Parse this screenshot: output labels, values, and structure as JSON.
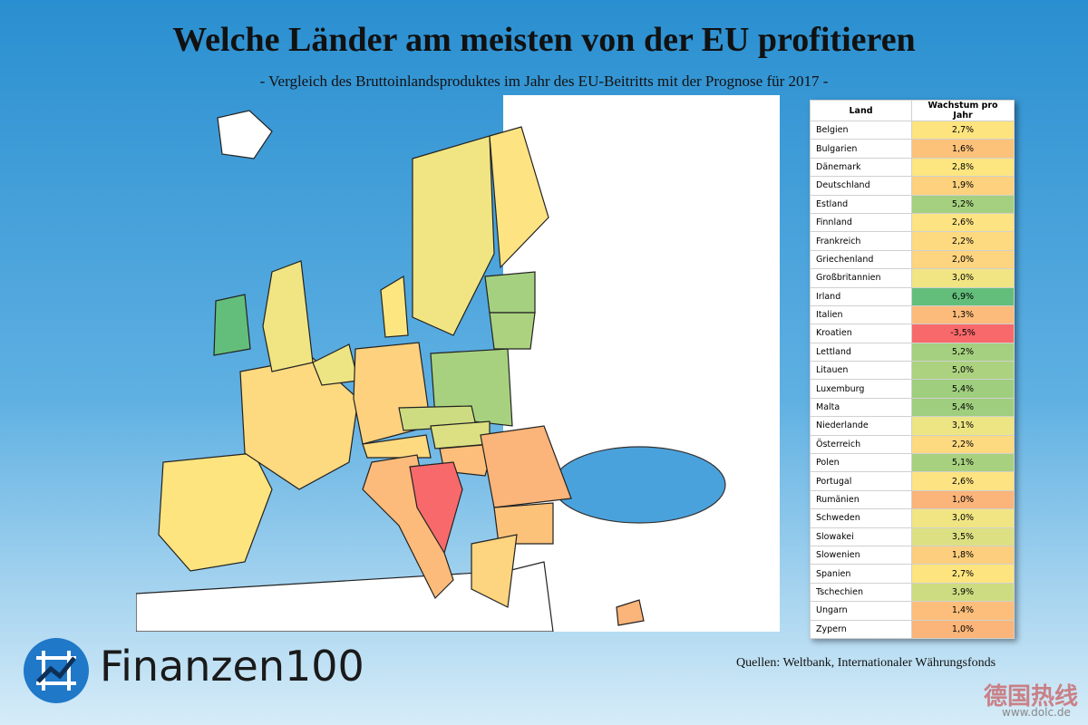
{
  "header": {
    "title": "Welche Länder am meisten von der EU profitieren",
    "subtitle": "- Vergleich des Bruttoinlandsproduktes im Jahr des EU-Beitritts mit der Prognose für 2017 -"
  },
  "table": {
    "columns": [
      "Land",
      "Wachstum pro Jahr"
    ],
    "rows": [
      [
        "Belgien",
        "2,7%"
      ],
      [
        "Bulgarien",
        "1,6%"
      ],
      [
        "Dänemark",
        "2,8%"
      ],
      [
        "Deutschland",
        "1,9%"
      ],
      [
        "Estland",
        "5,2%"
      ],
      [
        "Finnland",
        "2,6%"
      ],
      [
        "Frankreich",
        "2,2%"
      ],
      [
        "Griechenland",
        "2,0%"
      ],
      [
        "Großbritannien",
        "3,0%"
      ],
      [
        "Irland",
        "6,9%"
      ],
      [
        "Italien",
        "1,3%"
      ],
      [
        "Kroatien",
        "-3,5%"
      ],
      [
        "Lettland",
        "5,2%"
      ],
      [
        "Litauen",
        "5,0%"
      ],
      [
        "Luxemburg",
        "5,4%"
      ],
      [
        "Malta",
        "5,4%"
      ],
      [
        "Niederlande",
        "3,1%"
      ],
      [
        "Österreich",
        "2,2%"
      ],
      [
        "Polen",
        "5,1%"
      ],
      [
        "Portugal",
        "2,6%"
      ],
      [
        "Rumänien",
        "1,0%"
      ],
      [
        "Schweden",
        "3,0%"
      ],
      [
        "Slowakei",
        "3,5%"
      ],
      [
        "Slowenien",
        "1,8%"
      ],
      [
        "Spanien",
        "2,7%"
      ],
      [
        "Tschechien",
        "3,9%"
      ],
      [
        "Ungarn",
        "1,4%"
      ],
      [
        "Zypern",
        "1,0%"
      ]
    ],
    "colors": [
      "#fde47f",
      "#fcc27a",
      "#fde680",
      "#fdd17e",
      "#a5d07f",
      "#fee382",
      "#fdd980",
      "#fdd47f",
      "#f1e583",
      "#63be7b",
      "#fcbb7a",
      "#f8696b",
      "#a5d07f",
      "#acd27f",
      "#9fce7e",
      "#9fce7e",
      "#ede583",
      "#fdd980",
      "#a8d17f",
      "#fee382",
      "#fbb479",
      "#f1e583",
      "#dde082",
      "#fcce7d",
      "#fde47f",
      "#cedc81",
      "#fcbe7a",
      "#fbb479"
    ]
  },
  "logo": {
    "text": "Finanzen100"
  },
  "footer": {
    "sources": "Quellen: Weltbank, Internationaler Währungsfonds",
    "watermark": "德国热线",
    "watermark_url": "www.dolc.de"
  }
}
